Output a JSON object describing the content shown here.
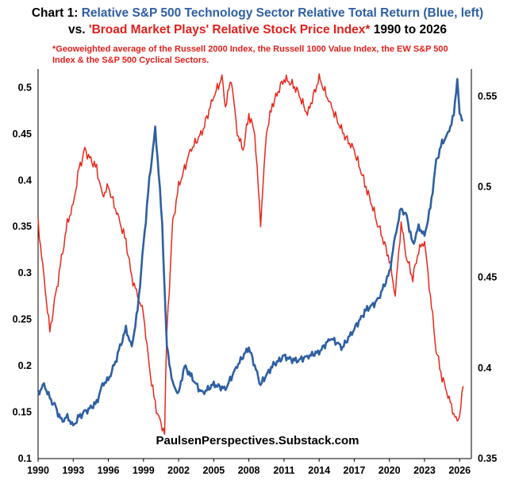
{
  "title": {
    "prefix": "Chart 1:",
    "blue_part": "Relative S&P 500 Technology Sector Relative Total Return (Blue, left)",
    "vs": "vs.",
    "red_part": "'Broad Market Plays' Relative Stock Price Index*",
    "range": "1990 to 2026"
  },
  "footnote": "*Geoweighted average of the Russell 2000 Index, the Russell 1000 Value Index, the EW S&P 500 Index & the S&P 500 Cyclical Sectors.",
  "watermark": "PaulsenPerspectives.Substack.com",
  "chart_data": {
    "type": "line",
    "title": "Relative S&P 500 Technology Sector Relative Total Return (Blue, left) vs. 'Broad Market Plays' Relative Stock Price Index* 1990 to 2026",
    "x_ticks": [
      "1990",
      "1993",
      "1996",
      "1999",
      "2002",
      "2005",
      "2008",
      "2011",
      "2014",
      "2017",
      "2020",
      "2023",
      "2026"
    ],
    "xlim": [
      1990,
      2027
    ],
    "left_axis": {
      "ylim": [
        0.1,
        0.52
      ],
      "ticks": [
        "0.1",
        "0.15",
        "0.2",
        "0.25",
        "0.3",
        "0.35",
        "0.4",
        "0.45",
        "0.5"
      ]
    },
    "right_axis": {
      "ylim": [
        0.35,
        0.565
      ],
      "ticks": [
        "0.35",
        "0.4",
        "0.45",
        "0.5",
        "0.55"
      ]
    },
    "series": [
      {
        "name": "Relative S&P 500 Technology Sector Relative Total Return",
        "axis": "left",
        "color": "#2e5fa3",
        "x": [
          1990,
          1990.5,
          1991,
          1991.5,
          1992,
          1992.5,
          1993,
          1993.5,
          1994,
          1995,
          1995.5,
          1996,
          1996.5,
          1997,
          1997.5,
          1998,
          1998.5,
          1999,
          1999.5,
          2000,
          2000.3,
          2000.6,
          2001,
          2001.5,
          2002,
          2002.5,
          2003,
          2004,
          2005,
          2006,
          2007,
          2008,
          2009,
          2010,
          2011,
          2012,
          2013,
          2014,
          2015,
          2016,
          2017,
          2018,
          2019,
          2020,
          2020.5,
          2021,
          2021.5,
          2022,
          2022.5,
          2023,
          2023.5,
          2024,
          2024.5,
          2025,
          2025.5,
          2025.8,
          2026,
          2026.3
        ],
        "values": [
          0.17,
          0.18,
          0.165,
          0.155,
          0.14,
          0.145,
          0.135,
          0.145,
          0.15,
          0.16,
          0.18,
          0.185,
          0.2,
          0.22,
          0.24,
          0.22,
          0.26,
          0.33,
          0.4,
          0.455,
          0.41,
          0.35,
          0.22,
          0.18,
          0.17,
          0.2,
          0.19,
          0.17,
          0.18,
          0.175,
          0.2,
          0.22,
          0.18,
          0.2,
          0.21,
          0.205,
          0.21,
          0.215,
          0.23,
          0.22,
          0.24,
          0.26,
          0.27,
          0.3,
          0.34,
          0.37,
          0.36,
          0.33,
          0.35,
          0.34,
          0.37,
          0.42,
          0.44,
          0.45,
          0.47,
          0.51,
          0.47,
          0.465
        ]
      },
      {
        "name": "'Broad Market Plays' Relative Stock Price Index",
        "axis": "right",
        "color": "#e8271b",
        "x": [
          1990,
          1990.5,
          1991,
          1991.5,
          1992,
          1992.5,
          1993,
          1993.5,
          1994,
          1995,
          1995.5,
          1996,
          1997,
          1997.5,
          1998,
          1998.5,
          1999,
          1999.5,
          2000,
          2000.4,
          2000.8,
          2001,
          2001.5,
          2002,
          2003,
          2004,
          2005,
          2005.7,
          2006,
          2006.5,
          2007,
          2007.5,
          2008,
          2008.5,
          2009,
          2009.5,
          2010,
          2011,
          2012,
          2013,
          2014,
          2015,
          2016,
          2017,
          2018,
          2019,
          2020,
          2020.5,
          2021,
          2021.5,
          2022,
          2022.5,
          2023,
          2023.5,
          2024,
          2024.5,
          2025,
          2025.5,
          2025.8,
          2026,
          2026.3
        ],
        "values": [
          0.48,
          0.45,
          0.42,
          0.44,
          0.46,
          0.48,
          0.49,
          0.51,
          0.52,
          0.51,
          0.495,
          0.5,
          0.48,
          0.47,
          0.45,
          0.44,
          0.43,
          0.4,
          0.38,
          0.37,
          0.365,
          0.42,
          0.48,
          0.5,
          0.52,
          0.53,
          0.55,
          0.56,
          0.545,
          0.56,
          0.53,
          0.52,
          0.54,
          0.53,
          0.48,
          0.53,
          0.545,
          0.56,
          0.555,
          0.54,
          0.56,
          0.545,
          0.53,
          0.52,
          0.5,
          0.48,
          0.46,
          0.44,
          0.48,
          0.46,
          0.45,
          0.465,
          0.47,
          0.44,
          0.41,
          0.395,
          0.385,
          0.375,
          0.37,
          0.375,
          0.39
        ]
      }
    ]
  }
}
